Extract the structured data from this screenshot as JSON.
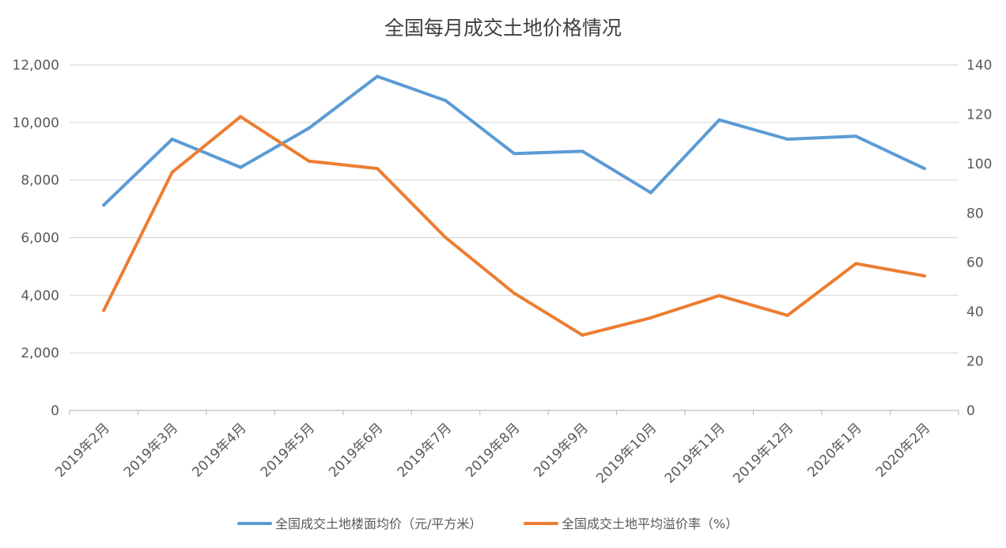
{
  "chart_data": {
    "type": "line",
    "title": "全国每月成交土地价格情况",
    "categories": [
      "2019年2月",
      "2019年3月",
      "2019年4月",
      "2019年5月",
      "2019年6月",
      "2019年7月",
      "2019年8月",
      "2019年9月",
      "2019年10月",
      "2019年11月",
      "2019年12月",
      "2020年1月",
      "2020年2月"
    ],
    "y_left": {
      "ylim": [
        0,
        12000
      ],
      "ticks": [
        0,
        2000,
        4000,
        6000,
        8000,
        10000,
        12000
      ],
      "tick_labels": [
        "0",
        "2,000",
        "4,000",
        "6,000",
        "8,000",
        "10,000",
        "12,000"
      ]
    },
    "y_right": {
      "ylim": [
        0,
        140
      ],
      "ticks": [
        0,
        20,
        40,
        60,
        80,
        100,
        120,
        140
      ],
      "tick_labels": [
        "0",
        "20",
        "40",
        "60",
        "80",
        "100",
        "120",
        "140"
      ]
    },
    "grid": true,
    "legend_position": "bottom",
    "series": [
      {
        "name": "全国成交土地楼面均价（元/平方米）",
        "axis": "left",
        "color": "#5b9bd5",
        "values": [
          7130,
          9420,
          8440,
          9800,
          11600,
          10760,
          8920,
          9000,
          7560,
          10090,
          9420,
          9520,
          8400
        ]
      },
      {
        "name": "全国成交土地平均溢价率（%）",
        "axis": "right",
        "color": "#ed7d31",
        "values": [
          40.5,
          96.5,
          119,
          101,
          98,
          70,
          47.5,
          30.5,
          37.5,
          46.5,
          38.5,
          59.5,
          54.5
        ]
      }
    ]
  }
}
